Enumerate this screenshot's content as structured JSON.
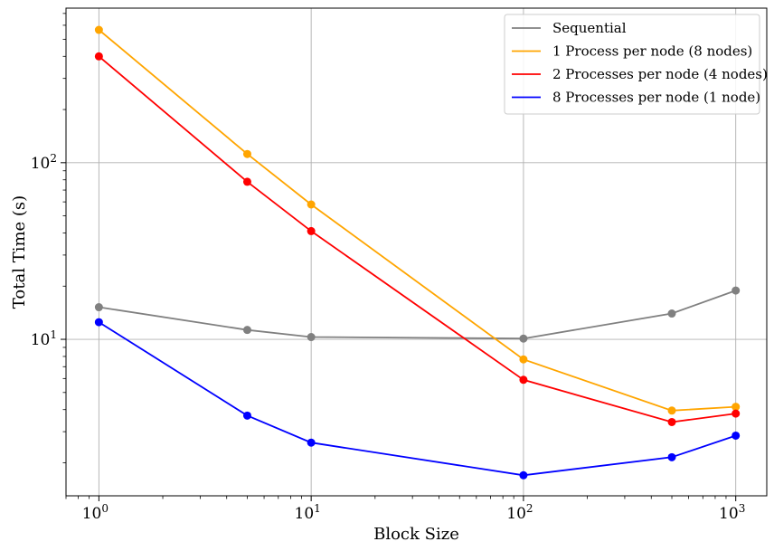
{
  "chart_data": {
    "type": "line",
    "title": "",
    "xlabel": "Block Size",
    "ylabel": "Total Time (s)",
    "xscale": "log",
    "yscale": "log",
    "xlim": [
      0.7,
      1400
    ],
    "ylim": [
      1.3,
      750
    ],
    "grid": true,
    "legend_position": "top-right",
    "x_ticks": [
      {
        "base": "10",
        "exp": "0",
        "value": 1
      },
      {
        "base": "10",
        "exp": "1",
        "value": 10
      },
      {
        "base": "10",
        "exp": "2",
        "value": 100
      },
      {
        "base": "10",
        "exp": "3",
        "value": 1000
      }
    ],
    "y_ticks": [
      {
        "base": "10",
        "exp": "1",
        "value": 10
      },
      {
        "base": "10",
        "exp": "2",
        "value": 100
      }
    ],
    "x": [
      1,
      5,
      10,
      100,
      500,
      1000
    ],
    "series": [
      {
        "name": "Sequential",
        "color": "#808080",
        "values": [
          15.2,
          11.3,
          10.3,
          10.1,
          14.0,
          18.9
        ]
      },
      {
        "name": "1 Process per node (8 nodes)",
        "color": "#ffa500",
        "values": [
          565,
          112,
          58,
          7.7,
          3.95,
          4.15
        ]
      },
      {
        "name": "2 Processes per node (4 nodes)",
        "color": "#ff0000",
        "values": [
          400,
          78,
          41,
          5.9,
          3.4,
          3.8
        ]
      },
      {
        "name": "8 Processes per node (1 node)",
        "color": "#0000ff",
        "values": [
          12.5,
          3.7,
          2.6,
          1.7,
          2.15,
          2.85
        ]
      }
    ]
  }
}
